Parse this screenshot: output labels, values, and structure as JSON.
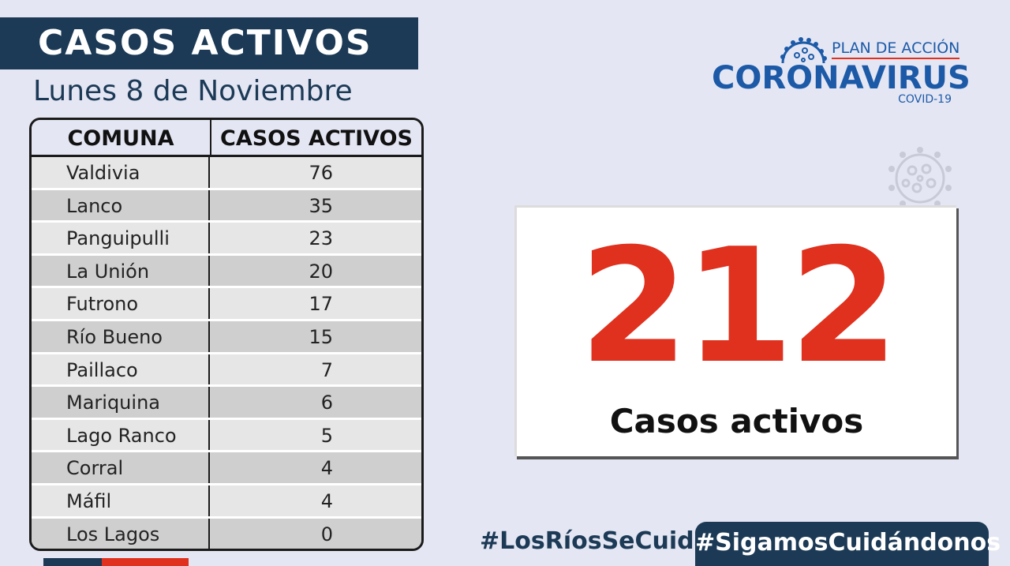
{
  "header": {
    "title": "CASOS ACTIVOS",
    "date": "Lunes 8 de Noviembre"
  },
  "logo": {
    "plan": "PLAN DE ACCIÓN",
    "main": "CORONAVIRUS",
    "sub": "COVID-19",
    "icon": "virus-icon"
  },
  "table": {
    "headers": [
      "COMUNA",
      "CASOS ACTIVOS"
    ],
    "rows": [
      {
        "comuna": "Valdivia",
        "casos": "76"
      },
      {
        "comuna": "Lanco",
        "casos": "35"
      },
      {
        "comuna": "Panguipulli",
        "casos": "23"
      },
      {
        "comuna": "La Unión",
        "casos": "20"
      },
      {
        "comuna": "Futrono",
        "casos": "17"
      },
      {
        "comuna": "Río Bueno",
        "casos": "15"
      },
      {
        "comuna": "Paillaco",
        "casos": "7"
      },
      {
        "comuna": "Mariquina",
        "casos": "6"
      },
      {
        "comuna": "Lago Ranco",
        "casos": "5"
      },
      {
        "comuna": "Corral",
        "casos": "4"
      },
      {
        "comuna": "Máfil",
        "casos": "4"
      },
      {
        "comuna": "Los Lagos",
        "casos": "0"
      }
    ]
  },
  "summary": {
    "total": "212",
    "label": "Casos activos"
  },
  "footer": {
    "hashtag_left": "#LosRíosSeCuida",
    "hashtag_right": "#SigamosCuidándonos"
  },
  "colors": {
    "navy": "#1c3a56",
    "red": "#e0301e",
    "blue": "#1c5aa8",
    "background": "#e4e6f3"
  }
}
